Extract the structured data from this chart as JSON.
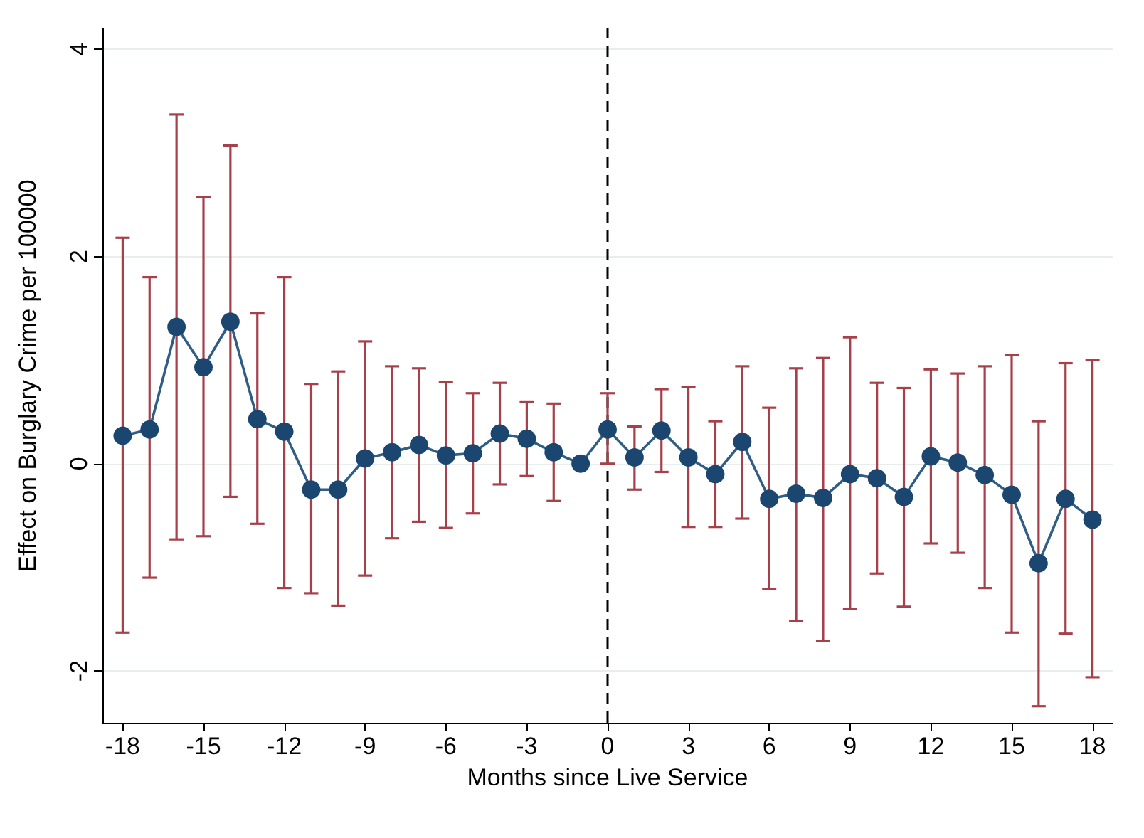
{
  "chart_data": {
    "type": "line",
    "xlabel": "Months since Live Service",
    "ylabel": "Effect on Burglary Crime per 100000",
    "x": [
      -18,
      -17,
      -16,
      -15,
      -14,
      -13,
      -12,
      -11,
      -10,
      -9,
      -8,
      -7,
      -6,
      -5,
      -4,
      -3,
      -2,
      -1,
      0,
      1,
      2,
      3,
      4,
      5,
      6,
      7,
      8,
      9,
      10,
      11,
      12,
      13,
      14,
      15,
      16,
      17,
      18
    ],
    "series": [
      {
        "color": "#1b4670",
        "values": [
          0.27,
          0.33,
          1.32,
          0.93,
          1.37,
          0.43,
          0.31,
          -0.25,
          -0.25,
          0.05,
          0.11,
          0.18,
          0.08,
          0.1,
          0.29,
          0.24,
          0.11,
          0,
          0.33,
          0.06,
          0.32,
          0.06,
          -0.1,
          0.21,
          -0.34,
          -0.29,
          -0.33,
          -0.1,
          -0.14,
          -0.32,
          0.07,
          0.01,
          -0.11,
          -0.3,
          -0.96,
          -0.34,
          -0.54
        ],
        "errors": [
          [
            -1.63,
            2.18
          ],
          [
            -1.1,
            1.8
          ],
          [
            -0.73,
            3.37
          ],
          [
            -0.7,
            2.57
          ],
          [
            -0.32,
            3.07
          ],
          [
            -0.58,
            1.45
          ],
          [
            -1.2,
            1.8
          ],
          [
            -1.25,
            0.77
          ],
          [
            -1.37,
            0.89
          ],
          [
            -1.08,
            1.18
          ],
          [
            -0.72,
            0.94
          ],
          [
            -0.56,
            0.92
          ],
          [
            -0.62,
            0.79
          ],
          [
            -0.48,
            0.68
          ],
          [
            -0.2,
            0.78
          ],
          [
            -0.12,
            0.6
          ],
          [
            -0.36,
            0.58
          ],
          null,
          [
            0,
            0.68
          ],
          [
            -0.25,
            0.36
          ],
          [
            -0.08,
            0.72
          ],
          [
            -0.61,
            0.74
          ],
          [
            -0.61,
            0.41
          ],
          [
            -0.53,
            0.94
          ],
          [
            -1.21,
            0.54
          ],
          [
            -1.52,
            0.92
          ],
          [
            -1.71,
            1.02
          ],
          [
            -1.4,
            1.22
          ],
          [
            -1.06,
            0.78
          ],
          [
            -1.38,
            0.73
          ],
          [
            -0.77,
            0.91
          ],
          [
            -0.86,
            0.87
          ],
          [
            -1.2,
            0.94
          ],
          [
            -1.63,
            1.05
          ],
          [
            -2.34,
            0.41
          ],
          [
            -1.64,
            0.97
          ],
          [
            -2.06,
            1.0
          ]
        ]
      }
    ],
    "xlim": [
      -18.75,
      18.75
    ],
    "xticks": [
      -18,
      -15,
      -12,
      -9,
      -6,
      -3,
      0,
      3,
      6,
      9,
      12,
      15,
      18
    ],
    "ylim": [
      -2.5,
      4.2
    ],
    "yticks": [
      -2,
      0,
      2,
      4
    ],
    "grid": "y",
    "marker": "circle",
    "line_style": "solid",
    "ref_lines": [
      {
        "axis": "x",
        "value": 0,
        "color": "#000000",
        "line_style": "dashed"
      }
    ]
  }
}
